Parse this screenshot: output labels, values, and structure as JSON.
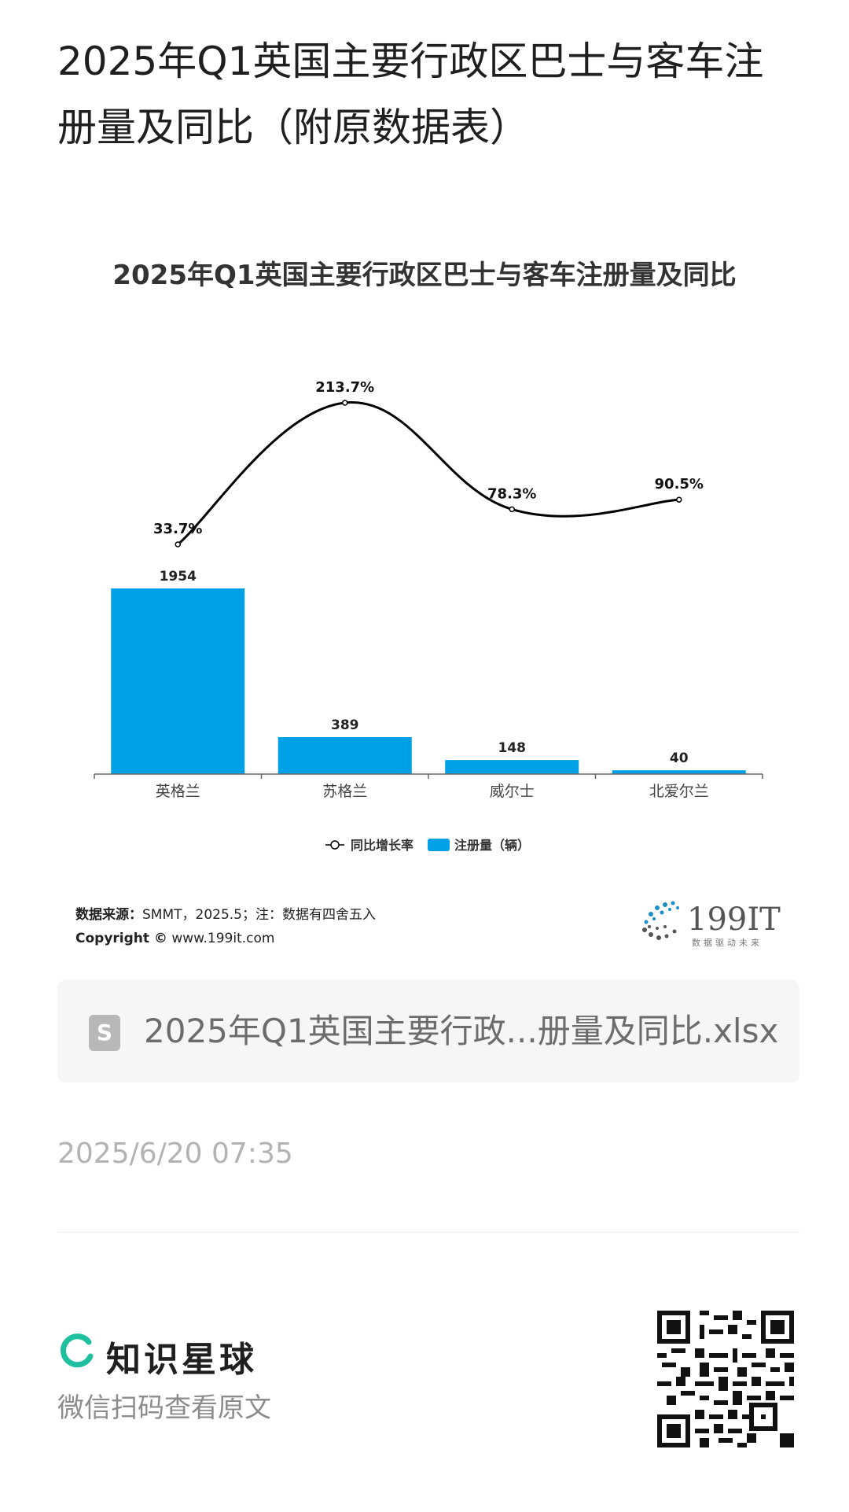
{
  "page": {
    "title": "2025年Q1英国主要行政区巴士与客车注册量及同比（附原数据表）"
  },
  "chart_data": {
    "type": "bar",
    "title": "2025年Q1英国主要行政区巴士与客车注册量及同比",
    "categories": [
      "英格兰",
      "苏格兰",
      "威尔士",
      "北爱尔兰"
    ],
    "series": [
      {
        "name": "注册量（辆）",
        "type": "bar",
        "values": [
          1954,
          389,
          148,
          40
        ],
        "labels": [
          "1954",
          "389",
          "148",
          "40"
        ],
        "color": "#00a0e6"
      },
      {
        "name": "同比增长率",
        "type": "line",
        "values": [
          33.7,
          213.7,
          78.3,
          90.5
        ],
        "labels": [
          "33.7%",
          "213.7%",
          "78.3%",
          "90.5%"
        ],
        "color": "#000000"
      }
    ],
    "legend": "bottom",
    "grid": false
  },
  "footer": {
    "source_label": "数据来源：",
    "source_text": "SMMT，2025.5；注：数据有四舍五入",
    "copyright_label": "Copyright ©",
    "copyright_text": "www.199it.com",
    "logo_text": "199IT",
    "logo_sub": "数据驱动未来"
  },
  "attachment": {
    "icon": "spreadsheet-icon",
    "icon_letter": "S",
    "filename": "2025年Q1英国主要行政...册量及同比.xlsx"
  },
  "meta": {
    "timestamp": "2025/6/20 07:35"
  },
  "brand": {
    "name": "知识星球",
    "subtitle": "微信扫码查看原文",
    "accent": "#1fbf9f"
  }
}
